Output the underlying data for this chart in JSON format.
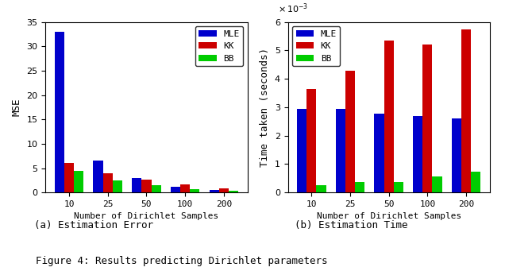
{
  "categories": [
    10,
    25,
    50,
    100,
    200
  ],
  "mse_MLE": [
    33.0,
    6.5,
    2.9,
    1.1,
    0.5
  ],
  "mse_KK": [
    6.1,
    3.9,
    2.7,
    1.6,
    0.9
  ],
  "mse_BB": [
    4.4,
    2.5,
    1.5,
    0.7,
    0.4
  ],
  "time_MLE": [
    0.00295,
    0.00293,
    0.00278,
    0.00268,
    0.0026
  ],
  "time_KK": [
    0.00363,
    0.00428,
    0.00535,
    0.00522,
    0.00575
  ],
  "time_BB": [
    0.00025,
    0.00038,
    0.00037,
    0.00056,
    0.00072
  ],
  "color_MLE": "#0000cc",
  "color_KK": "#cc0000",
  "color_BB": "#00cc00",
  "xlabel": "Number of Dirichlet Samples",
  "ylabel_left": "MSE",
  "ylabel_right": "Time taken (seconds)",
  "label_a": "(a) Estimation Error",
  "label_b": "(b) Estimation Time",
  "figure_caption": "Figure 4: Results predicting Dirichlet parameters",
  "ylim_left": [
    0,
    35
  ],
  "ylim_right": [
    0,
    0.006
  ],
  "yticks_left": [
    0,
    5,
    10,
    15,
    20,
    25,
    30,
    35
  ],
  "yticks_right": [
    0,
    0.001,
    0.002,
    0.003,
    0.004,
    0.005,
    0.006
  ]
}
